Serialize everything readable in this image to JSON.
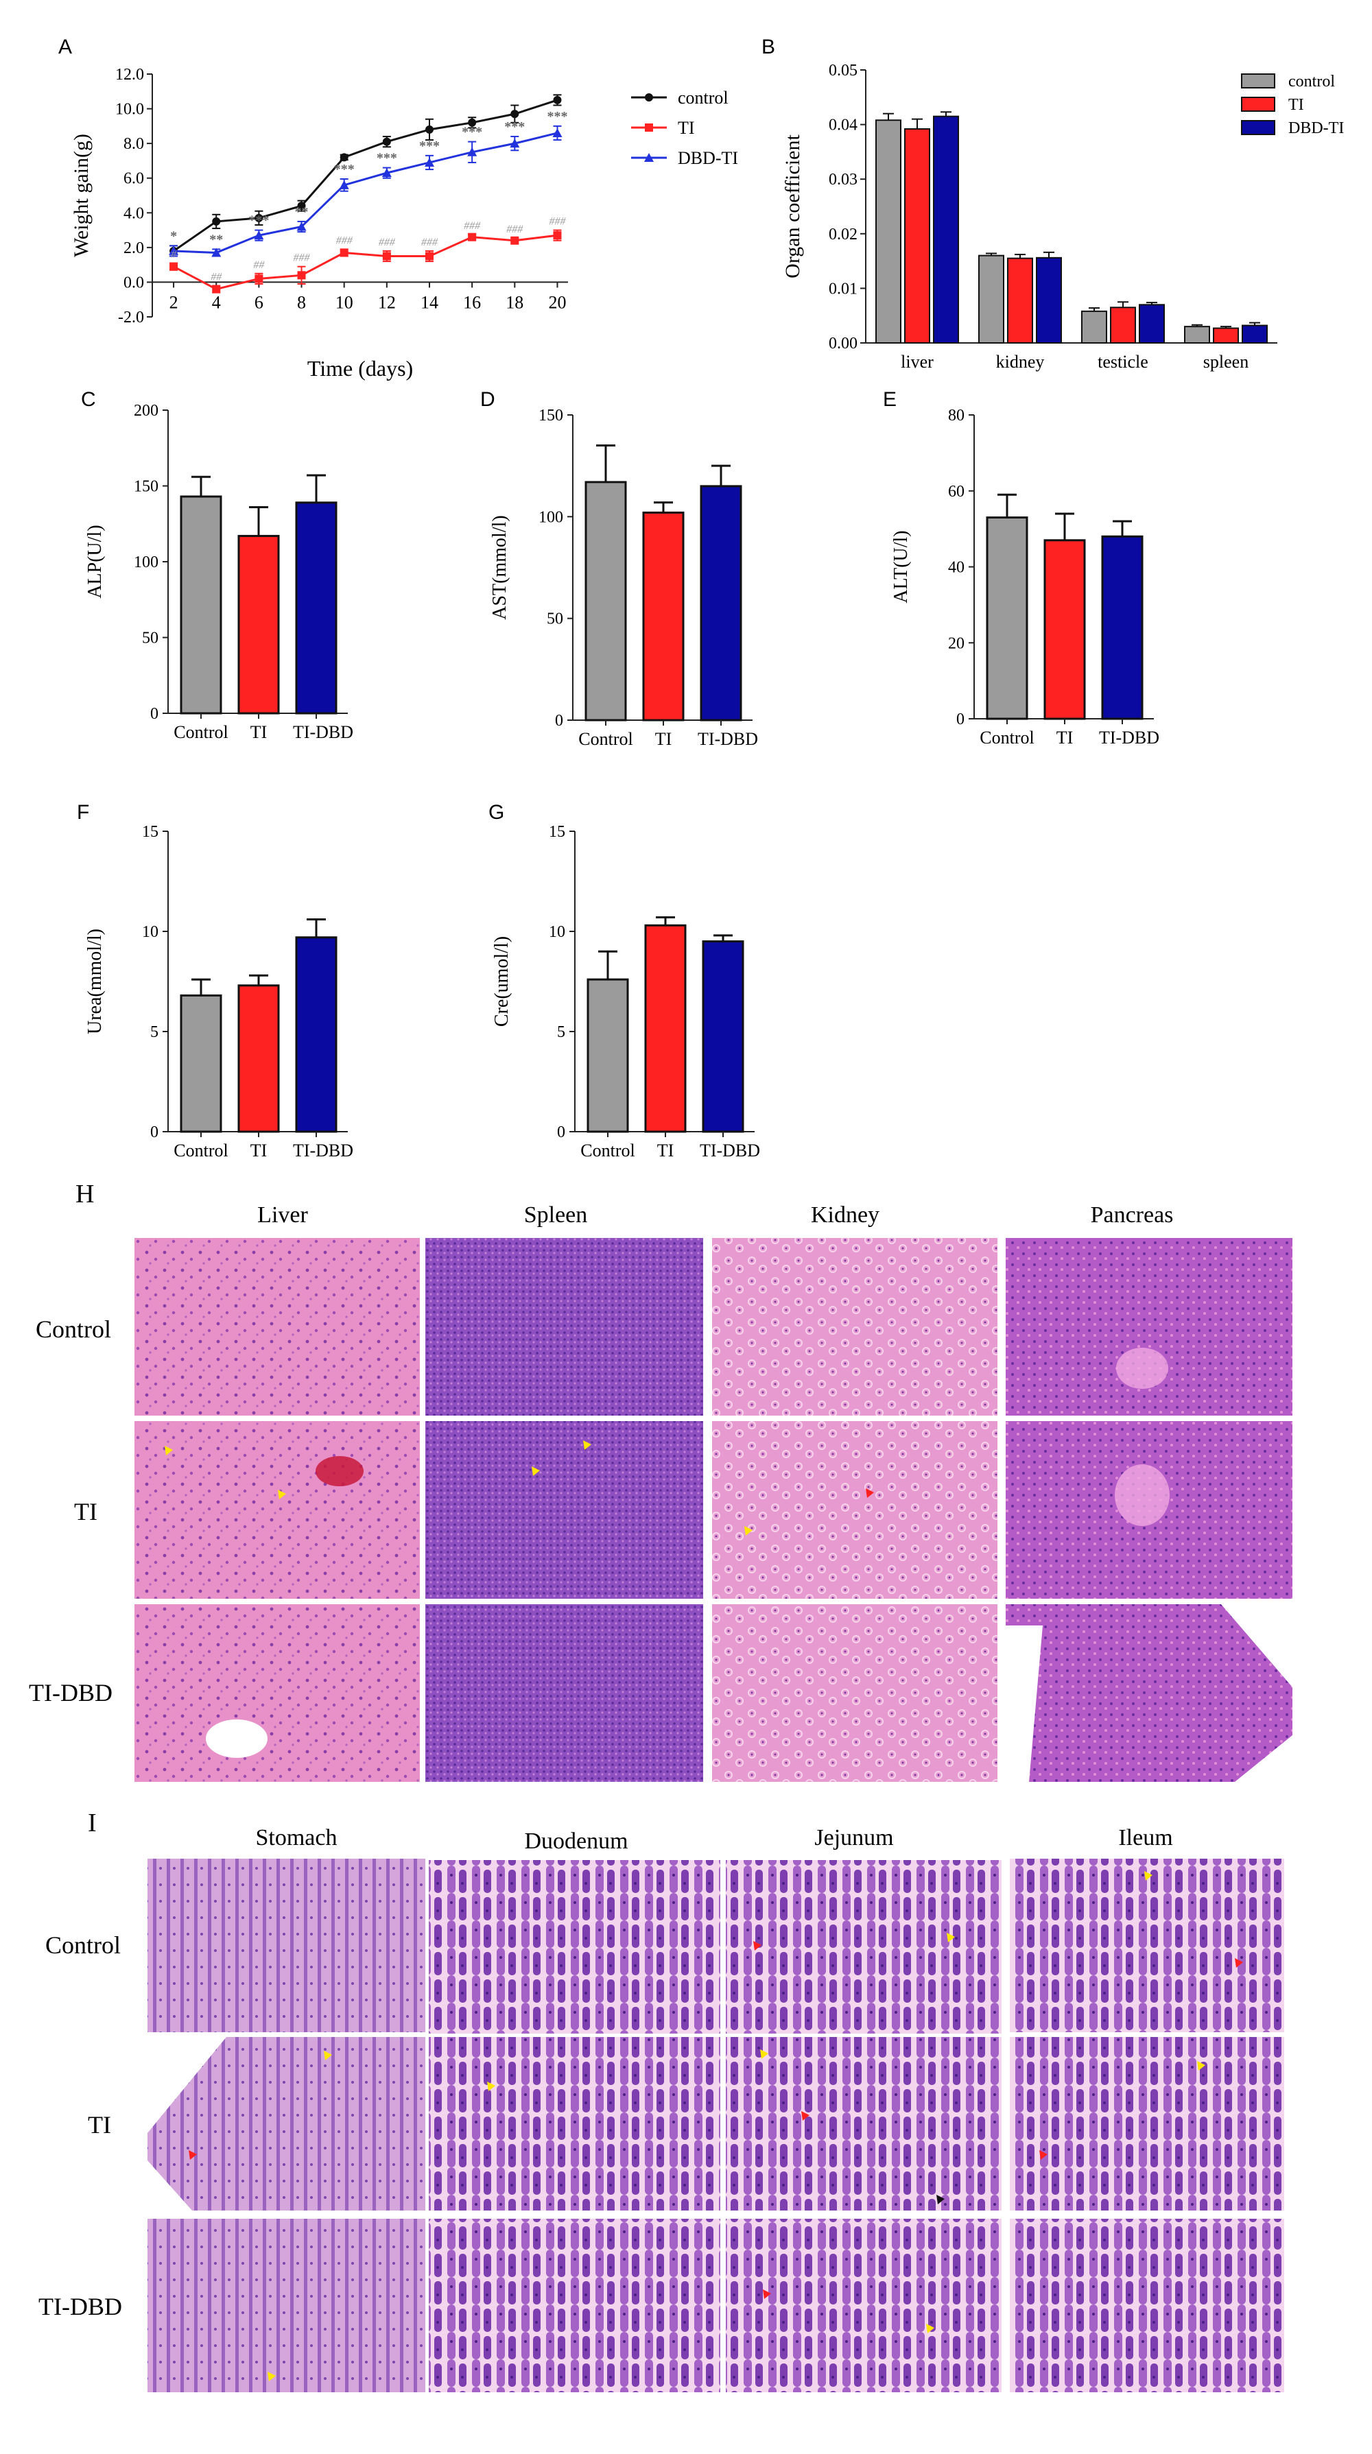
{
  "colors": {
    "control": "#9b9b9b",
    "ti": "#ff2222",
    "dbd": "#0a0aa0",
    "lineControl": "#111111",
    "lineTI": "#ff2222",
    "lineDBD": "#2233dd"
  },
  "panel_letters": {
    "A": "A",
    "B": "B",
    "C": "C",
    "D": "D",
    "E": "E",
    "F": "F",
    "G": "G",
    "H": "H",
    "I": "I"
  },
  "chart_data": [
    {
      "panel": "A",
      "type": "line",
      "xlabel": "Time (days)",
      "ylabel": "Weight gain(g)",
      "x": [
        2,
        4,
        6,
        8,
        10,
        12,
        14,
        16,
        18,
        20
      ],
      "xlim": [
        1,
        20.5
      ],
      "ylim": [
        -2,
        12
      ],
      "yticks": [
        "-2.0",
        "0.0",
        "2.0",
        "4.0",
        "6.0",
        "8.0",
        "10.0",
        "12.0"
      ],
      "xticks": [
        "2",
        "4",
        "6",
        "8",
        "10",
        "12",
        "14",
        "16",
        "18",
        "20"
      ],
      "legend": "top-right",
      "series": [
        {
          "name": "control",
          "values": [
            1.8,
            3.5,
            3.7,
            4.4,
            7.2,
            8.1,
            8.8,
            9.2,
            9.7,
            10.5
          ],
          "err": [
            0.3,
            0.4,
            0.4,
            0.3,
            0.15,
            0.3,
            0.6,
            0.3,
            0.5,
            0.3
          ]
        },
        {
          "name": "TI",
          "values": [
            0.9,
            -0.4,
            0.2,
            0.4,
            1.7,
            1.5,
            1.5,
            2.6,
            2.4,
            2.7
          ],
          "err": [
            0.2,
            0.2,
            0.3,
            0.5,
            0.2,
            0.3,
            0.3,
            0.15,
            0.15,
            0.3
          ]
        },
        {
          "name": "DBD-TI",
          "values": [
            1.8,
            1.7,
            2.7,
            3.2,
            5.6,
            6.3,
            6.9,
            7.5,
            8.0,
            8.6
          ],
          "err": [
            0.3,
            0.2,
            0.3,
            0.3,
            0.35,
            0.3,
            0.4,
            0.6,
            0.4,
            0.4
          ]
        }
      ],
      "annotations": {
        "dbd": [
          "*",
          "**",
          "***",
          "**",
          "***",
          "***",
          "***",
          "***",
          "***",
          "***"
        ],
        "ti": [
          "#",
          "##",
          "##",
          "###",
          "###",
          "###",
          "###",
          "###",
          "###",
          "###"
        ]
      }
    },
    {
      "panel": "B",
      "type": "bar",
      "ylabel": "Organ coefficient",
      "categories": [
        "liver",
        "kidney",
        "testicle",
        "spleen"
      ],
      "ylim": [
        0,
        0.05
      ],
      "yticks": [
        "0.00",
        "0.01",
        "0.02",
        "0.03",
        "0.04",
        "0.05"
      ],
      "legend": "top-right",
      "series": [
        {
          "name": "control",
          "values": [
            0.0408,
            0.016,
            0.0058,
            0.003
          ],
          "err": [
            0.0012,
            0.0004,
            0.0006,
            0.0003
          ]
        },
        {
          "name": "TI",
          "values": [
            0.0392,
            0.0155,
            0.0065,
            0.0027
          ],
          "err": [
            0.0018,
            0.0007,
            0.001,
            0.0003
          ]
        },
        {
          "name": "DBD-TI",
          "values": [
            0.0415,
            0.0156,
            0.007,
            0.0032
          ],
          "err": [
            0.0008,
            0.001,
            0.0004,
            0.0005
          ]
        }
      ]
    },
    {
      "panel": "C",
      "type": "bar",
      "ylabel": "ALP(U/l)",
      "categories": [
        "Control",
        "TI",
        "TI-DBD"
      ],
      "ylim": [
        0,
        200
      ],
      "yticks": [
        "0",
        "50",
        "100",
        "150",
        "200"
      ],
      "values": [
        143,
        117,
        139
      ],
      "err": [
        13,
        19,
        18
      ]
    },
    {
      "panel": "D",
      "type": "bar",
      "ylabel": "AST(mmol/l)",
      "categories": [
        "Control",
        "TI",
        "TI-DBD"
      ],
      "ylim": [
        0,
        150
      ],
      "yticks": [
        "0",
        "50",
        "100",
        "150"
      ],
      "values": [
        117,
        102,
        115
      ],
      "err": [
        18,
        5,
        10
      ]
    },
    {
      "panel": "E",
      "type": "bar",
      "ylabel": "ALT(U/l)",
      "categories": [
        "Control",
        "TI",
        "TI-DBD"
      ],
      "ylim": [
        0,
        80
      ],
      "yticks": [
        "0",
        "20",
        "40",
        "60",
        "80"
      ],
      "values": [
        53,
        47,
        48
      ],
      "err": [
        6,
        7,
        4
      ]
    },
    {
      "panel": "F",
      "type": "bar",
      "ylabel": "Urea(mmol/l)",
      "categories": [
        "Control",
        "TI",
        "TI-DBD"
      ],
      "ylim": [
        0,
        15
      ],
      "yticks": [
        "0",
        "5",
        "10",
        "15"
      ],
      "values": [
        6.8,
        7.3,
        9.7
      ],
      "err": [
        0.8,
        0.5,
        0.9
      ]
    },
    {
      "panel": "G",
      "type": "bar",
      "ylabel": "Cre(umol/l)",
      "categories": [
        "Control",
        "TI",
        "TI-DBD"
      ],
      "ylim": [
        0,
        15
      ],
      "yticks": [
        "0",
        "5",
        "10",
        "15"
      ],
      "values": [
        7.6,
        10.3,
        9.5
      ],
      "err": [
        1.4,
        0.4,
        0.3
      ]
    }
  ],
  "histology_H": {
    "columns": [
      "Liver",
      "Spleen",
      "Kidney",
      "Pancreas"
    ],
    "rows": [
      "Control",
      "TI",
      "TI-DBD"
    ]
  },
  "histology_I": {
    "columns": [
      "Stomach",
      "Duodenum",
      "Jejunum",
      "Ileum"
    ],
    "rows": [
      "Control",
      "TI",
      "TI-DBD"
    ]
  }
}
